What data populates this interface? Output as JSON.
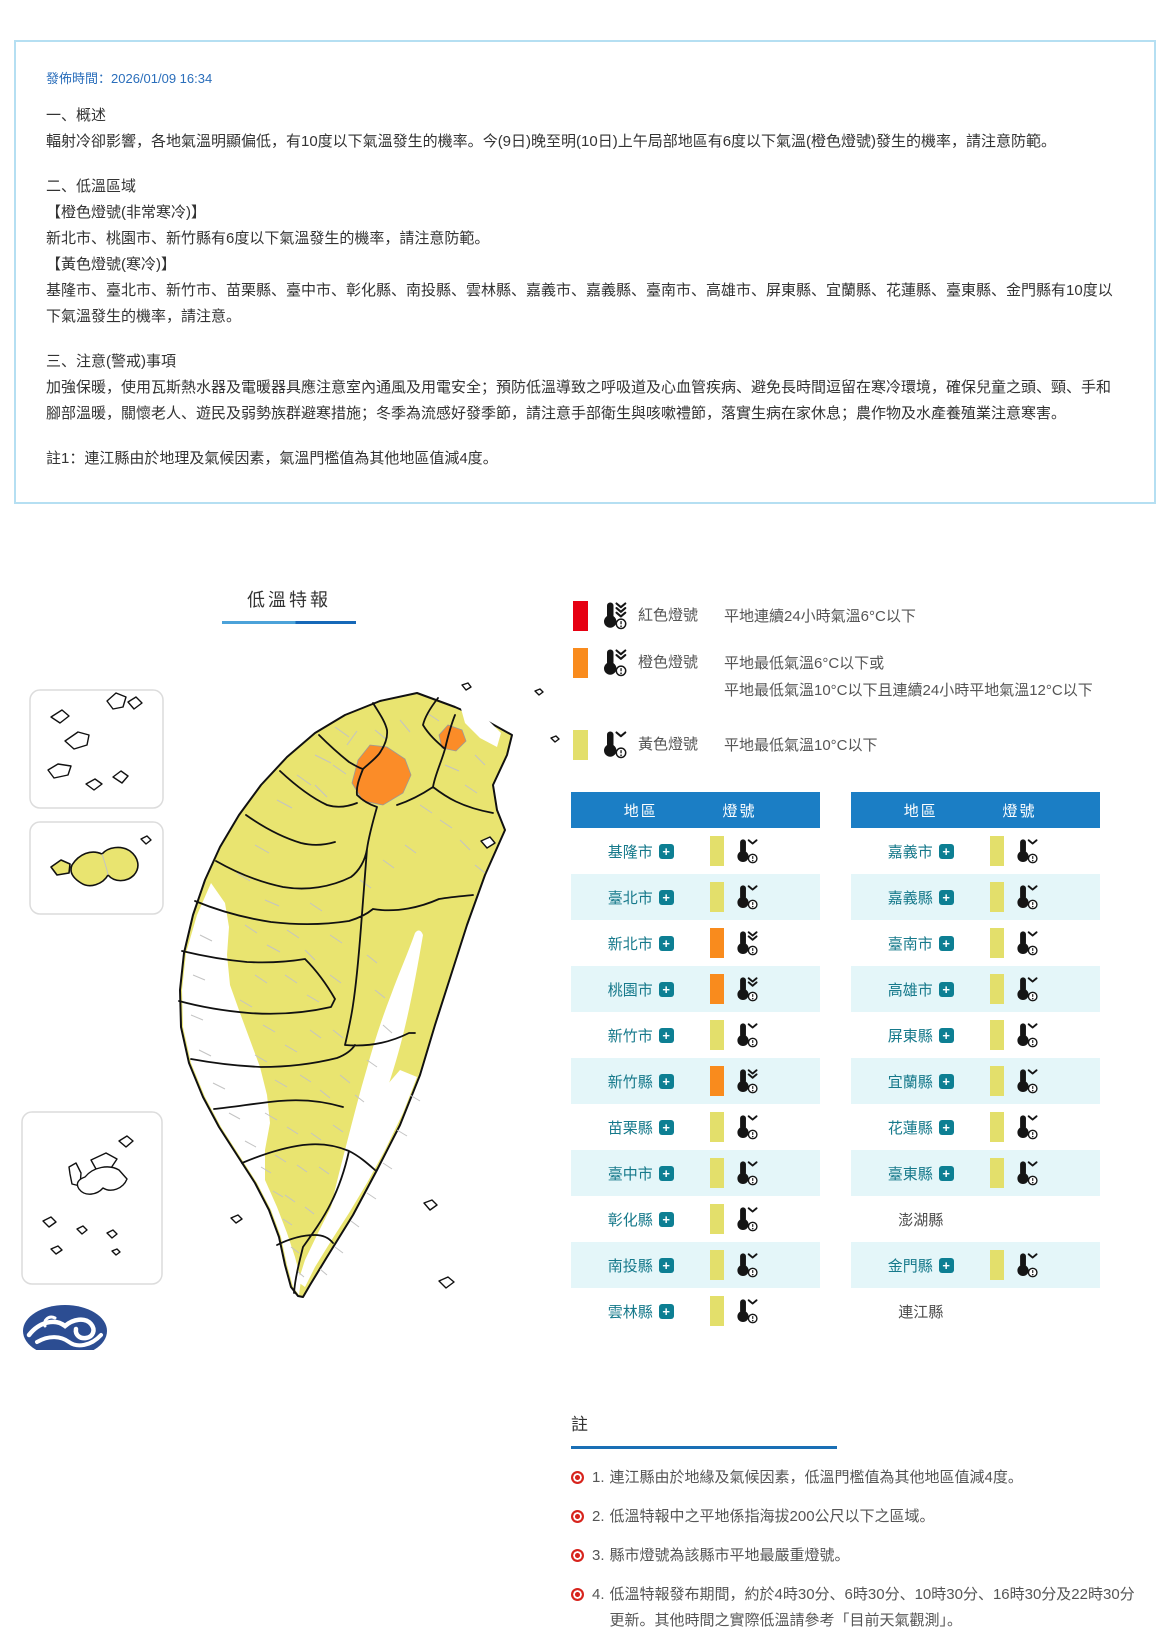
{
  "colors": {
    "red": "#e60012",
    "orange": "#f98b1d",
    "yellow": "#e3df6b",
    "map_yellow": "#e9e470",
    "map_orange": "#fb8c28",
    "header_blue": "#1b7ec5",
    "row_alt": "#e4f6f9",
    "region_teal": "#16798b",
    "plus_teal": "#0d7f93",
    "note_red": "#d7241d",
    "underline_blue": "#1a6fb5",
    "box_border": "#b5dff2",
    "publish_blue": "#2a6ebb"
  },
  "bulletin": {
    "publish_time": "發佈時間：2026/01/09 16:34",
    "paragraphs": [
      "一、概述",
      "輻射冷卻影響，各地氣溫明顯偏低，有10度以下氣溫發生的機率。今(9日)晚至明(10日)上午局部地區有6度以下氣溫(橙色燈號)發生的機率，請注意防範。",
      "",
      "二、低溫區域",
      "【橙色燈號(非常寒冷)】",
      "新北市、桃園市、新竹縣有6度以下氣溫發生的機率，請注意防範。",
      "【黃色燈號(寒冷)】",
      "基隆市、臺北市、新竹市、苗栗縣、臺中市、彰化縣、南投縣、雲林縣、嘉義市、嘉義縣、臺南市、高雄市、屏東縣、宜蘭縣、花蓮縣、臺東縣、金門縣有10度以下氣溫發生的機率，請注意。",
      "",
      "三、注意(警戒)事項",
      "加強保暖，使用瓦斯熱水器及電暖器具應注意室內通風及用電安全；預防低溫導致之呼吸道及心血管疾病、避免長時間逗留在寒冷環境，確保兒童之頭、頸、手和腳部溫暖，關懷老人、遊民及弱勢族群避寒措施；冬季為流感好發季節，請注意手部衛生與咳嗽禮節，落實生病在家休息；農作物及水產養殖業注意寒害。",
      "",
      "註1：連江縣由於地理及氣候因素，氣溫門檻值為其他地區值減4度。"
    ]
  },
  "map": {
    "title": "低溫特報"
  },
  "legend": {
    "items": [
      {
        "color": "red",
        "chevrons": 3,
        "label": "紅色燈號",
        "desc": [
          "平地連續24小時氣溫6°C以下"
        ]
      },
      {
        "color": "orange",
        "chevrons": 2,
        "label": "橙色燈號",
        "desc": [
          "平地最低氣溫6°C以下或",
          "平地最低氣溫10°C以下且連續24小時平地氣溫12°C以下"
        ]
      },
      {
        "color": "yellow",
        "chevrons": 1,
        "label": "黃色燈號",
        "desc": [
          "平地最低氣溫10°C以下"
        ]
      }
    ]
  },
  "tables": {
    "header": {
      "region": "地區",
      "signal": "燈號"
    },
    "left": [
      {
        "name": "基隆市",
        "level": "yellow"
      },
      {
        "name": "臺北市",
        "level": "yellow"
      },
      {
        "name": "新北市",
        "level": "orange"
      },
      {
        "name": "桃園市",
        "level": "orange"
      },
      {
        "name": "新竹市",
        "level": "yellow"
      },
      {
        "name": "新竹縣",
        "level": "orange"
      },
      {
        "name": "苗栗縣",
        "level": "yellow"
      },
      {
        "name": "臺中市",
        "level": "yellow"
      },
      {
        "name": "彰化縣",
        "level": "yellow"
      },
      {
        "name": "南投縣",
        "level": "yellow"
      },
      {
        "name": "雲林縣",
        "level": "yellow"
      }
    ],
    "right": [
      {
        "name": "嘉義市",
        "level": "yellow"
      },
      {
        "name": "嘉義縣",
        "level": "yellow"
      },
      {
        "name": "臺南市",
        "level": "yellow"
      },
      {
        "name": "高雄市",
        "level": "yellow"
      },
      {
        "name": "屏東縣",
        "level": "yellow"
      },
      {
        "name": "宜蘭縣",
        "level": "yellow"
      },
      {
        "name": "花蓮縣",
        "level": "yellow"
      },
      {
        "name": "臺東縣",
        "level": "yellow"
      },
      {
        "name": "澎湖縣",
        "level": "none"
      },
      {
        "name": "金門縣",
        "level": "yellow"
      },
      {
        "name": "連江縣",
        "level": "none"
      }
    ]
  },
  "notes": {
    "title": "註",
    "items": [
      {
        "num": "1.",
        "text": "連江縣由於地緣及氣候因素，低溫門檻值為其他地區值減4度。"
      },
      {
        "num": "2.",
        "text": "低溫特報中之平地係指海拔200公尺以下之區域。"
      },
      {
        "num": "3.",
        "text": "縣市燈號為該縣市平地最嚴重燈號。"
      },
      {
        "num": "4.",
        "text": "低溫特報發布期間，約於4時30分、6時30分、10時30分、16時30分及22時30分更新。其他時間之實際低溫請參考「目前天氣觀測」。"
      }
    ]
  }
}
